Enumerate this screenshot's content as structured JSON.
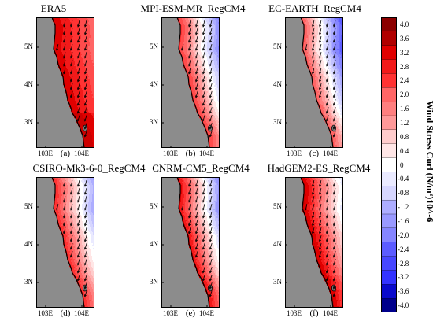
{
  "panels": [
    {
      "title": "ERA5",
      "label": "(a)",
      "profile": "era5"
    },
    {
      "title": "MPI-ESM-MR_RegCM4",
      "label": "(b)",
      "profile": "mpi"
    },
    {
      "title": "EC-EARTH_RegCM4",
      "label": "(c)",
      "profile": "ec"
    },
    {
      "title": "CSIRO-Mk3-6-0_RegCM4",
      "label": "(d)",
      "profile": "csiro"
    },
    {
      "title": "CNRM-CM5_RegCM4",
      "label": "(e)",
      "profile": "cnrm"
    },
    {
      "title": "HadGEM2-ES_RegCM4",
      "label": "(f)",
      "profile": "had"
    }
  ],
  "axes": {
    "lat_ticks": [
      "5N",
      "4N",
      "3N"
    ],
    "lon_ticks": [
      "103E",
      "104E"
    ]
  },
  "colorbar": {
    "title": "Wind Stress Curl (N/m³)10^-6",
    "ticks": [
      "4.0",
      "3.6",
      "3.2",
      "2.8",
      "2.4",
      "2.0",
      "1.6",
      "1.2",
      "0.8",
      "0.4",
      "0",
      "-0.4",
      "-0.8",
      "-1.2",
      "-1.6",
      "-2.0",
      "-2.4",
      "-2.8",
      "-3.2",
      "-3.6",
      "-4.0"
    ],
    "bands": 21
  },
  "colors": {
    "land": "#8c8c8c",
    "positive_max": "#8b0000",
    "negative_max": "#00008b"
  }
}
